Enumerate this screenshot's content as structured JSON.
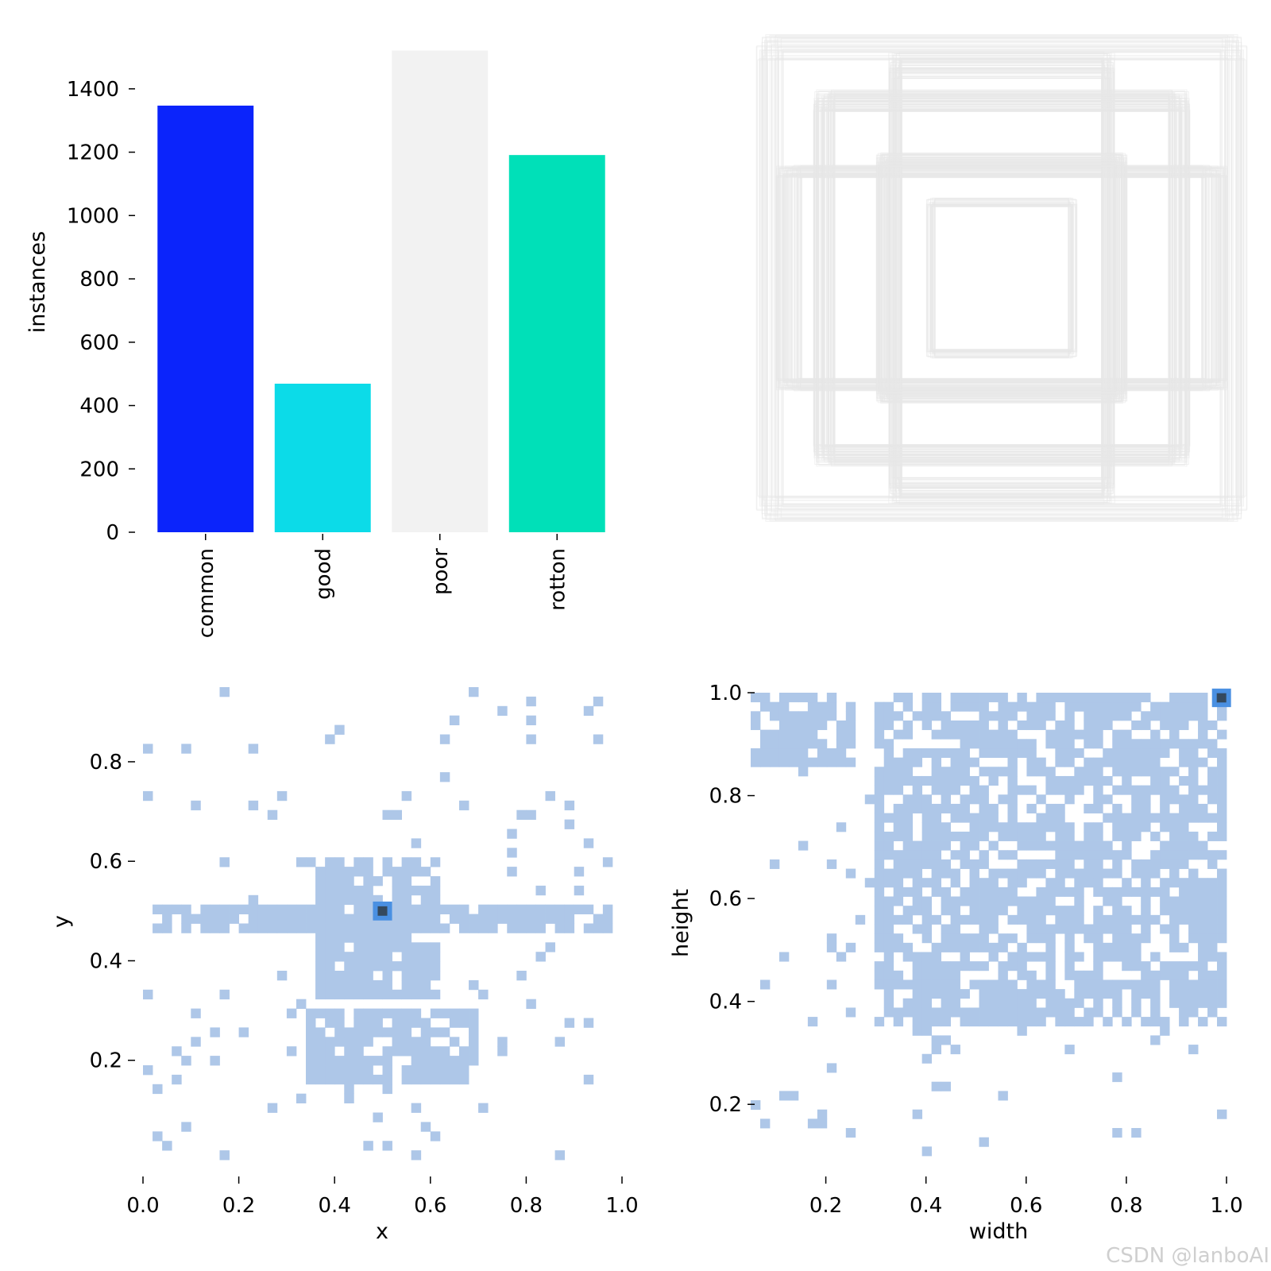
{
  "colors": {
    "histogram_light": "#aec7e8",
    "histogram_mid": "#4a90e2",
    "histogram_dark": "#34495e",
    "box_outline": "#e8e8e8"
  },
  "watermark": "CSDN @lanboAI",
  "chart_data": [
    {
      "type": "bar",
      "categories": [
        "common",
        "good",
        "poor",
        "rotton"
      ],
      "values": [
        1347,
        469,
        1521,
        1191
      ],
      "colors": [
        "#0b24fb",
        "#0cdbe8",
        "#f2f2f2",
        "#00e0b8"
      ],
      "ylabel": "instances",
      "xlabel": "",
      "ylim": [
        0,
        1530
      ],
      "yticks": [
        0,
        200,
        400,
        600,
        800,
        1000,
        1200,
        1400
      ],
      "grid": false
    },
    {
      "type": "other",
      "description": "overlay of normalized bounding box outlines centred on the panel",
      "series": [
        {
          "box_size": [
            0.98,
            0.98
          ],
          "count": 40
        },
        {
          "box_size": [
            0.9,
            0.45
          ],
          "count": 60
        },
        {
          "box_size": [
            0.45,
            0.9
          ],
          "count": 60
        },
        {
          "box_size": [
            0.75,
            0.75
          ],
          "count": 80
        },
        {
          "box_size": [
            0.5,
            0.5
          ],
          "count": 60
        },
        {
          "box_size": [
            0.3,
            0.32
          ],
          "count": 30
        }
      ]
    },
    {
      "type": "heatmap",
      "xlabel": "x",
      "ylabel": "y",
      "xlim": [
        0.0,
        1.0
      ],
      "ylim": [
        0.0,
        0.95
      ],
      "xticks": [
        "0.0",
        "0.2",
        "0.4",
        "0.6",
        "0.8",
        "1.0"
      ],
      "yticks": [
        "0.2",
        "0.4",
        "0.6",
        "0.8"
      ],
      "bins": 50,
      "peak": [
        0.5,
        0.5
      ],
      "dense_regions": [
        {
          "x": [
            0.36,
            0.62
          ],
          "y": [
            0.33,
            0.6
          ]
        },
        {
          "x": [
            0.35,
            0.7
          ],
          "y": [
            0.15,
            0.3
          ]
        },
        {
          "x": [
            0.03,
            0.97
          ],
          "y": [
            0.45,
            0.52
          ]
        }
      ]
    },
    {
      "type": "heatmap",
      "xlabel": "width",
      "ylabel": "height",
      "xlim": [
        0.05,
        1.0
      ],
      "ylim": [
        0.1,
        1.0
      ],
      "xticks": [
        "0.2",
        "0.4",
        "0.6",
        "0.8",
        "1.0"
      ],
      "yticks": [
        "0.2",
        "0.4",
        "0.6",
        "0.8",
        "1.0"
      ],
      "bins": 50,
      "peak": [
        0.99,
        0.99
      ],
      "dense_regions": [
        {
          "x": [
            0.3,
            1.0
          ],
          "y": [
            0.35,
            1.0
          ]
        },
        {
          "x": [
            0.05,
            0.25
          ],
          "y": [
            0.85,
            1.0
          ]
        }
      ]
    }
  ]
}
